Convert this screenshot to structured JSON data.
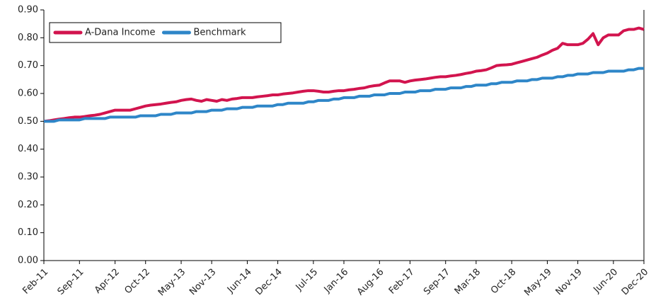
{
  "chart_data": {
    "type": "line",
    "categories": [
      "Feb-11",
      null,
      null,
      null,
      null,
      null,
      null,
      "Sep-11",
      null,
      null,
      null,
      null,
      null,
      null,
      "Apr-12",
      null,
      null,
      null,
      null,
      null,
      "Oct-12",
      null,
      null,
      null,
      null,
      null,
      null,
      "May-13",
      null,
      null,
      null,
      null,
      null,
      "Nov-13",
      null,
      null,
      null,
      null,
      null,
      null,
      "Jun-14",
      null,
      null,
      null,
      null,
      null,
      "Dec-14",
      null,
      null,
      null,
      null,
      null,
      null,
      "Jul-15",
      null,
      null,
      null,
      null,
      null,
      "Jan-16",
      null,
      null,
      null,
      null,
      null,
      null,
      "Aug-16",
      null,
      null,
      null,
      null,
      null,
      "Feb-17",
      null,
      null,
      null,
      null,
      null,
      null,
      "Sep-17",
      null,
      null,
      null,
      null,
      null,
      "Mar-18",
      null,
      null,
      null,
      null,
      null,
      null,
      "Oct-18",
      null,
      null,
      null,
      null,
      null,
      null,
      "May-19",
      null,
      null,
      null,
      null,
      null,
      "Nov-19",
      null,
      null,
      null,
      null,
      null,
      null,
      "Jun-20",
      null,
      null,
      null,
      null,
      null,
      "Dec-20"
    ],
    "series": [
      {
        "name": "A-Dana Income",
        "color": "#d2144e",
        "values": [
          0.5,
          0.502,
          0.505,
          0.508,
          0.51,
          0.513,
          0.515,
          0.515,
          0.517,
          0.52,
          0.522,
          0.525,
          0.53,
          0.535,
          0.54,
          0.54,
          0.54,
          0.54,
          0.545,
          0.55,
          0.555,
          0.558,
          0.56,
          0.562,
          0.565,
          0.568,
          0.57,
          0.575,
          0.578,
          0.58,
          0.575,
          0.572,
          0.578,
          0.575,
          0.572,
          0.578,
          0.575,
          0.58,
          0.582,
          0.585,
          0.585,
          0.585,
          0.588,
          0.59,
          0.592,
          0.595,
          0.595,
          0.598,
          0.6,
          0.602,
          0.605,
          0.608,
          0.61,
          0.61,
          0.608,
          0.605,
          0.605,
          0.608,
          0.61,
          0.61,
          0.613,
          0.615,
          0.618,
          0.62,
          0.625,
          0.628,
          0.63,
          0.638,
          0.645,
          0.645,
          0.645,
          0.64,
          0.645,
          0.648,
          0.65,
          0.652,
          0.655,
          0.658,
          0.66,
          0.66,
          0.663,
          0.665,
          0.668,
          0.672,
          0.675,
          0.68,
          0.682,
          0.685,
          0.692,
          0.7,
          0.702,
          0.703,
          0.705,
          0.71,
          0.715,
          0.72,
          0.725,
          0.73,
          0.738,
          0.745,
          0.755,
          0.762,
          0.78,
          0.775,
          0.775,
          0.775,
          0.78,
          0.795,
          0.815,
          0.775,
          0.8,
          0.81,
          0.81,
          0.81,
          0.825,
          0.83,
          0.83,
          0.835,
          0.83
        ]
      },
      {
        "name": "Benchmark",
        "color": "#2e86c8",
        "values": [
          0.5,
          0.5,
          0.5,
          0.505,
          0.505,
          0.505,
          0.505,
          0.505,
          0.51,
          0.51,
          0.51,
          0.51,
          0.51,
          0.515,
          0.515,
          0.515,
          0.515,
          0.515,
          0.515,
          0.52,
          0.52,
          0.52,
          0.52,
          0.525,
          0.525,
          0.525,
          0.53,
          0.53,
          0.53,
          0.53,
          0.535,
          0.535,
          0.535,
          0.54,
          0.54,
          0.54,
          0.545,
          0.545,
          0.545,
          0.55,
          0.55,
          0.55,
          0.555,
          0.555,
          0.555,
          0.555,
          0.56,
          0.56,
          0.565,
          0.565,
          0.565,
          0.565,
          0.57,
          0.57,
          0.575,
          0.575,
          0.575,
          0.58,
          0.58,
          0.585,
          0.585,
          0.585,
          0.59,
          0.59,
          0.59,
          0.595,
          0.595,
          0.595,
          0.6,
          0.6,
          0.6,
          0.605,
          0.605,
          0.605,
          0.61,
          0.61,
          0.61,
          0.615,
          0.615,
          0.615,
          0.62,
          0.62,
          0.62,
          0.625,
          0.625,
          0.63,
          0.63,
          0.63,
          0.635,
          0.635,
          0.64,
          0.64,
          0.64,
          0.645,
          0.645,
          0.645,
          0.65,
          0.65,
          0.655,
          0.655,
          0.655,
          0.66,
          0.66,
          0.665,
          0.665,
          0.67,
          0.67,
          0.67,
          0.675,
          0.675,
          0.675,
          0.68,
          0.68,
          0.68,
          0.68,
          0.685,
          0.685,
          0.69,
          0.69
        ]
      }
    ],
    "ylim": [
      0,
      0.9
    ],
    "yticks": [
      {
        "value": 0,
        "label": "0.00"
      },
      {
        "value": 0.1,
        "label": "0.10"
      },
      {
        "value": 0.2,
        "label": "0.20"
      },
      {
        "value": 0.3,
        "label": "0.30"
      },
      {
        "value": 0.4,
        "label": "0.40"
      },
      {
        "value": 0.5,
        "label": "0.50"
      },
      {
        "value": 0.6,
        "label": "0.60"
      },
      {
        "value": 0.7,
        "label": "0.70"
      },
      {
        "value": 0.8,
        "label": "0.80"
      },
      {
        "value": 0.9,
        "label": "0.90"
      }
    ],
    "grid": false,
    "legend": "upper left"
  }
}
